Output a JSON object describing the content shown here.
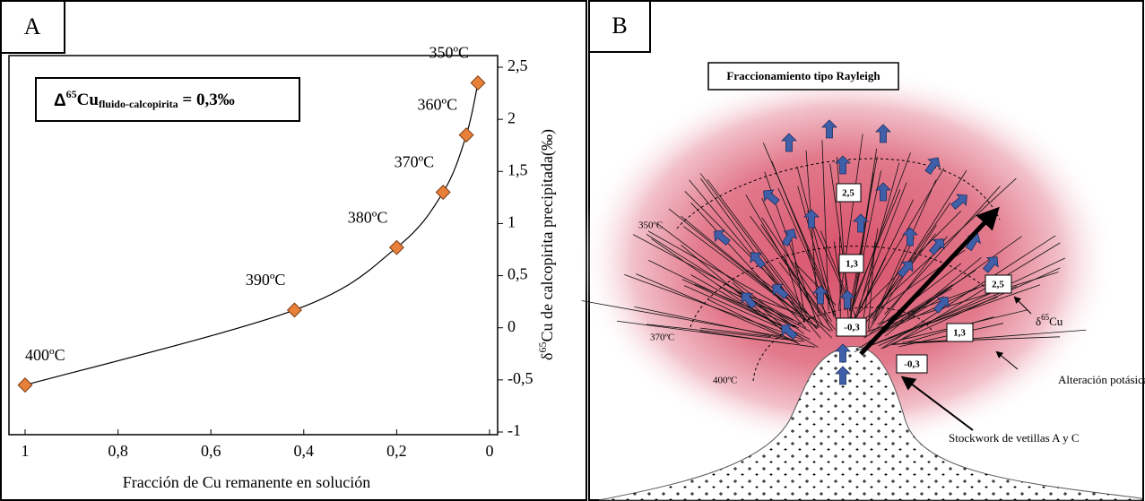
{
  "chart_data": {
    "type": "line",
    "panel_label": "A",
    "x_label": "Fracción de Cu remanente en solución",
    "y_label_parts": [
      "δ",
      "65",
      "Cu de calcopirita precipitada(‰)"
    ],
    "annotation_parts": [
      "Δ",
      "65",
      "Cu",
      "fluido-calcopirita",
      " = 0,3‰"
    ],
    "x": [
      1,
      0.42,
      0.2,
      0.1,
      0.05,
      0.025
    ],
    "series": [
      {
        "color": "#e8803a",
        "values": [
          -0.55,
          0.17,
          0.77,
          1.3,
          1.85,
          2.35
        ]
      }
    ],
    "point_labels": [
      "400ºC",
      "390ºC",
      "380ºC",
      "370ºC",
      "360ºC",
      "350ºC"
    ],
    "xlim": [
      1,
      0
    ],
    "ylim": [
      -1,
      2.5
    ],
    "xticks": [
      {
        "value": 1,
        "label": "1"
      },
      {
        "value": 0.8,
        "label": "0,8"
      },
      {
        "value": 0.6,
        "label": "0,6"
      },
      {
        "value": 0.4,
        "label": "0,4"
      },
      {
        "value": 0.2,
        "label": "0,2"
      },
      {
        "value": 0,
        "label": "0"
      }
    ],
    "yticks": [
      {
        "value": 2.5,
        "label": "2,5"
      },
      2,
      {
        "value": 1.5,
        "label": "1,5"
      },
      1,
      {
        "value": 0.5,
        "label": "0,5"
      },
      0,
      {
        "value": -0.5,
        "label": "-0,5"
      },
      -1
    ]
  },
  "diagram": {
    "panel_label": "B",
    "title": "Fraccionamiento tipo Rayleigh",
    "isotherms": [
      "350ºC",
      "370ºC",
      "400ºC"
    ],
    "center_values": [
      "2,5",
      "1,3",
      "-0,3"
    ],
    "side_values": [
      "2,5",
      "1,3",
      "-0,3"
    ],
    "legend_isotope": [
      "δ",
      "65",
      "Cu"
    ],
    "legend_alteration": "Alteración potásica",
    "legend_stockwork": "Stockwork de vetillas A y C"
  }
}
